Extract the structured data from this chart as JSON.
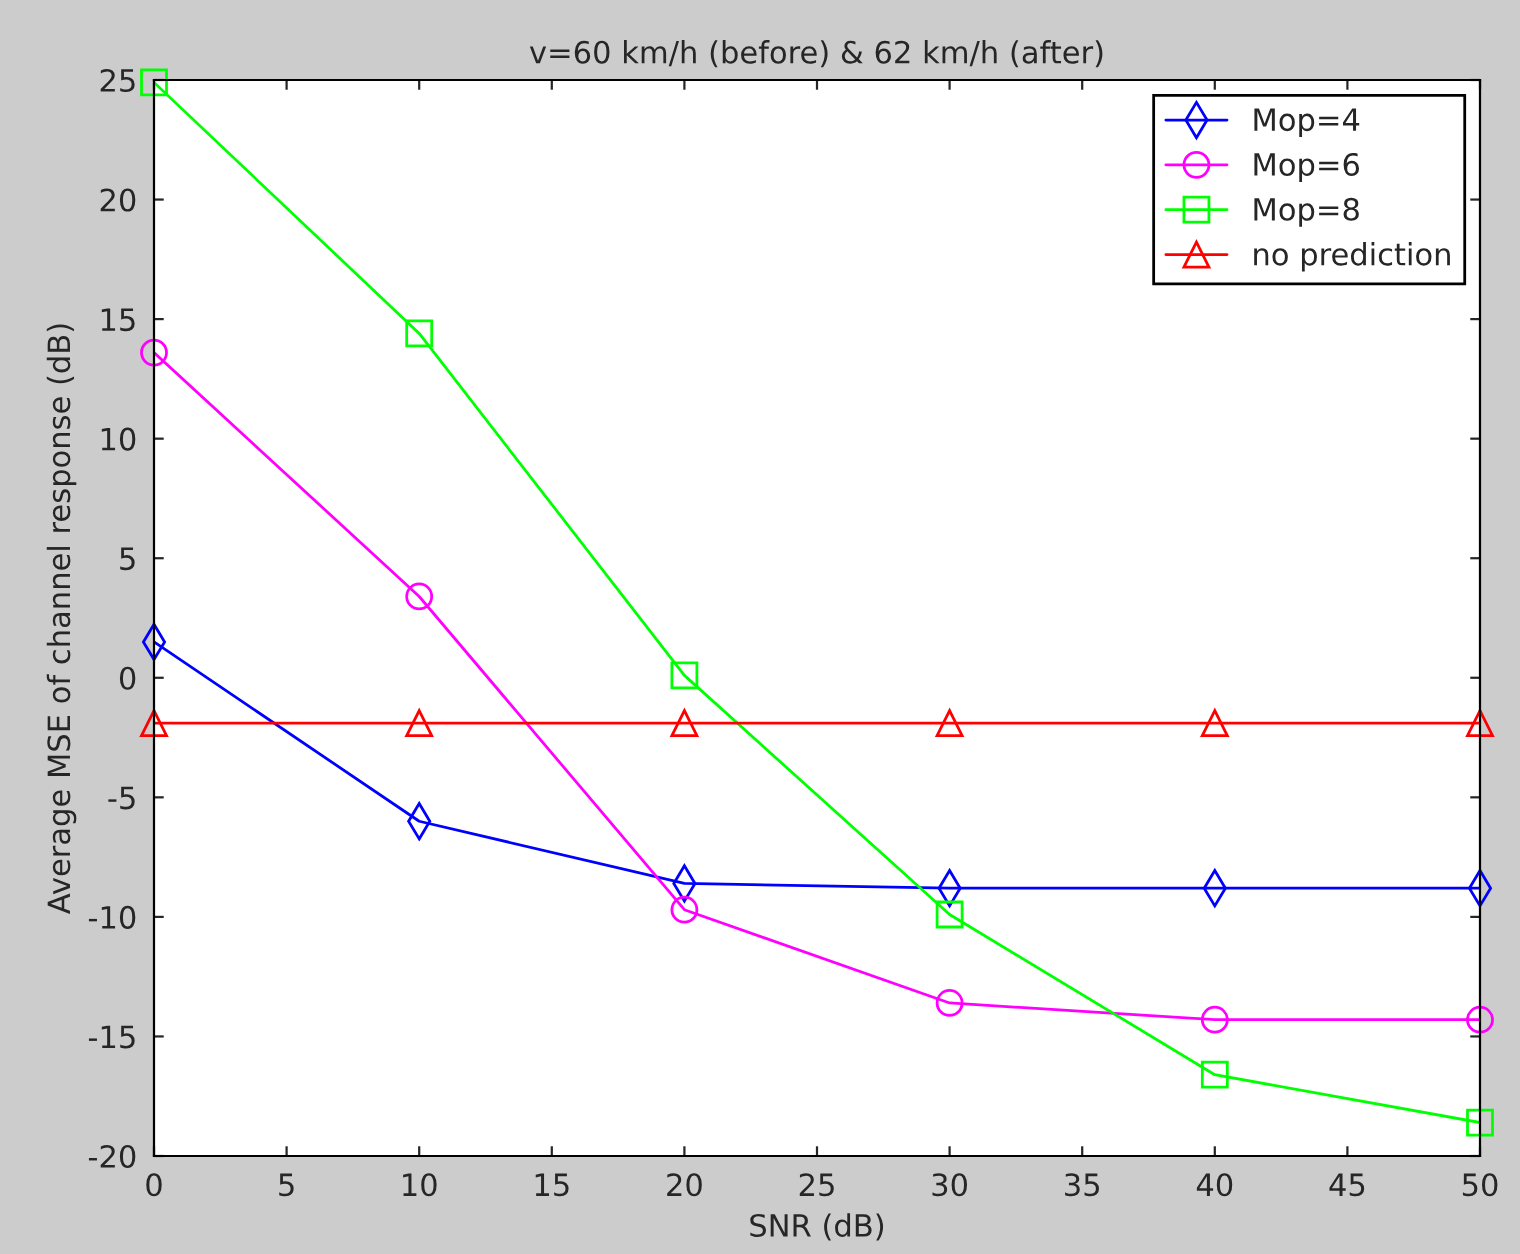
{
  "chart_data": {
    "type": "line",
    "title": "v=60 km/h (before) & 62 km/h (after)",
    "xlabel": "SNR (dB)",
    "ylabel": "Average MSE of channel response (dB)",
    "x": [
      0,
      10,
      20,
      30,
      40,
      50
    ],
    "series": [
      {
        "name": "Mop=4",
        "color": "#0000ff",
        "marker": "diamond",
        "values": [
          1.5,
          -6.0,
          -8.6,
          -8.8,
          -8.8,
          -8.8
        ]
      },
      {
        "name": "Mop=6",
        "color": "#ff00ff",
        "marker": "circle",
        "values": [
          13.6,
          3.4,
          -9.7,
          -13.6,
          -14.3,
          -14.3
        ]
      },
      {
        "name": "Mop=8",
        "color": "#00ff00",
        "marker": "square",
        "values": [
          24.9,
          14.4,
          0.1,
          -9.9,
          -16.6,
          -18.6
        ]
      },
      {
        "name": "no prediction",
        "color": "#ff0000",
        "marker": "triangle",
        "values": [
          -1.9,
          -1.9,
          -1.9,
          -1.9,
          -1.9,
          -1.9
        ]
      }
    ],
    "xlim": [
      0,
      50
    ],
    "xticks": [
      0,
      5,
      10,
      15,
      20,
      25,
      30,
      35,
      40,
      45,
      50
    ],
    "ylim": [
      -20,
      25
    ],
    "yticks": [
      -20,
      -15,
      -10,
      -5,
      0,
      5,
      10,
      15,
      20,
      25
    ],
    "grid": false,
    "legend": "top right"
  }
}
